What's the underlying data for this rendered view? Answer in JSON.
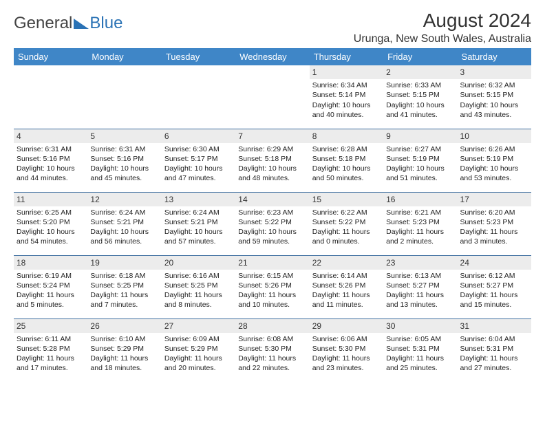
{
  "logo": {
    "part1": "General",
    "part2": "Blue"
  },
  "header": {
    "month_title": "August 2024",
    "location": "Urunga, New South Wales, Australia"
  },
  "colors": {
    "header_bg": "#3f86c7",
    "header_text": "#ffffff",
    "daynum_bg": "#ececec",
    "row_divider": "#3f6fa0",
    "logo_blue": "#2a72b5"
  },
  "day_names": [
    "Sunday",
    "Monday",
    "Tuesday",
    "Wednesday",
    "Thursday",
    "Friday",
    "Saturday"
  ],
  "weeks": [
    [
      null,
      null,
      null,
      null,
      {
        "n": "1",
        "sr": "Sunrise: 6:34 AM",
        "ss": "Sunset: 5:14 PM",
        "dl1": "Daylight: 10 hours",
        "dl2": "and 40 minutes."
      },
      {
        "n": "2",
        "sr": "Sunrise: 6:33 AM",
        "ss": "Sunset: 5:15 PM",
        "dl1": "Daylight: 10 hours",
        "dl2": "and 41 minutes."
      },
      {
        "n": "3",
        "sr": "Sunrise: 6:32 AM",
        "ss": "Sunset: 5:15 PM",
        "dl1": "Daylight: 10 hours",
        "dl2": "and 43 minutes."
      }
    ],
    [
      {
        "n": "4",
        "sr": "Sunrise: 6:31 AM",
        "ss": "Sunset: 5:16 PM",
        "dl1": "Daylight: 10 hours",
        "dl2": "and 44 minutes."
      },
      {
        "n": "5",
        "sr": "Sunrise: 6:31 AM",
        "ss": "Sunset: 5:16 PM",
        "dl1": "Daylight: 10 hours",
        "dl2": "and 45 minutes."
      },
      {
        "n": "6",
        "sr": "Sunrise: 6:30 AM",
        "ss": "Sunset: 5:17 PM",
        "dl1": "Daylight: 10 hours",
        "dl2": "and 47 minutes."
      },
      {
        "n": "7",
        "sr": "Sunrise: 6:29 AM",
        "ss": "Sunset: 5:18 PM",
        "dl1": "Daylight: 10 hours",
        "dl2": "and 48 minutes."
      },
      {
        "n": "8",
        "sr": "Sunrise: 6:28 AM",
        "ss": "Sunset: 5:18 PM",
        "dl1": "Daylight: 10 hours",
        "dl2": "and 50 minutes."
      },
      {
        "n": "9",
        "sr": "Sunrise: 6:27 AM",
        "ss": "Sunset: 5:19 PM",
        "dl1": "Daylight: 10 hours",
        "dl2": "and 51 minutes."
      },
      {
        "n": "10",
        "sr": "Sunrise: 6:26 AM",
        "ss": "Sunset: 5:19 PM",
        "dl1": "Daylight: 10 hours",
        "dl2": "and 53 minutes."
      }
    ],
    [
      {
        "n": "11",
        "sr": "Sunrise: 6:25 AM",
        "ss": "Sunset: 5:20 PM",
        "dl1": "Daylight: 10 hours",
        "dl2": "and 54 minutes."
      },
      {
        "n": "12",
        "sr": "Sunrise: 6:24 AM",
        "ss": "Sunset: 5:21 PM",
        "dl1": "Daylight: 10 hours",
        "dl2": "and 56 minutes."
      },
      {
        "n": "13",
        "sr": "Sunrise: 6:24 AM",
        "ss": "Sunset: 5:21 PM",
        "dl1": "Daylight: 10 hours",
        "dl2": "and 57 minutes."
      },
      {
        "n": "14",
        "sr": "Sunrise: 6:23 AM",
        "ss": "Sunset: 5:22 PM",
        "dl1": "Daylight: 10 hours",
        "dl2": "and 59 minutes."
      },
      {
        "n": "15",
        "sr": "Sunrise: 6:22 AM",
        "ss": "Sunset: 5:22 PM",
        "dl1": "Daylight: 11 hours",
        "dl2": "and 0 minutes."
      },
      {
        "n": "16",
        "sr": "Sunrise: 6:21 AM",
        "ss": "Sunset: 5:23 PM",
        "dl1": "Daylight: 11 hours",
        "dl2": "and 2 minutes."
      },
      {
        "n": "17",
        "sr": "Sunrise: 6:20 AM",
        "ss": "Sunset: 5:23 PM",
        "dl1": "Daylight: 11 hours",
        "dl2": "and 3 minutes."
      }
    ],
    [
      {
        "n": "18",
        "sr": "Sunrise: 6:19 AM",
        "ss": "Sunset: 5:24 PM",
        "dl1": "Daylight: 11 hours",
        "dl2": "and 5 minutes."
      },
      {
        "n": "19",
        "sr": "Sunrise: 6:18 AM",
        "ss": "Sunset: 5:25 PM",
        "dl1": "Daylight: 11 hours",
        "dl2": "and 7 minutes."
      },
      {
        "n": "20",
        "sr": "Sunrise: 6:16 AM",
        "ss": "Sunset: 5:25 PM",
        "dl1": "Daylight: 11 hours",
        "dl2": "and 8 minutes."
      },
      {
        "n": "21",
        "sr": "Sunrise: 6:15 AM",
        "ss": "Sunset: 5:26 PM",
        "dl1": "Daylight: 11 hours",
        "dl2": "and 10 minutes."
      },
      {
        "n": "22",
        "sr": "Sunrise: 6:14 AM",
        "ss": "Sunset: 5:26 PM",
        "dl1": "Daylight: 11 hours",
        "dl2": "and 11 minutes."
      },
      {
        "n": "23",
        "sr": "Sunrise: 6:13 AM",
        "ss": "Sunset: 5:27 PM",
        "dl1": "Daylight: 11 hours",
        "dl2": "and 13 minutes."
      },
      {
        "n": "24",
        "sr": "Sunrise: 6:12 AM",
        "ss": "Sunset: 5:27 PM",
        "dl1": "Daylight: 11 hours",
        "dl2": "and 15 minutes."
      }
    ],
    [
      {
        "n": "25",
        "sr": "Sunrise: 6:11 AM",
        "ss": "Sunset: 5:28 PM",
        "dl1": "Daylight: 11 hours",
        "dl2": "and 17 minutes."
      },
      {
        "n": "26",
        "sr": "Sunrise: 6:10 AM",
        "ss": "Sunset: 5:29 PM",
        "dl1": "Daylight: 11 hours",
        "dl2": "and 18 minutes."
      },
      {
        "n": "27",
        "sr": "Sunrise: 6:09 AM",
        "ss": "Sunset: 5:29 PM",
        "dl1": "Daylight: 11 hours",
        "dl2": "and 20 minutes."
      },
      {
        "n": "28",
        "sr": "Sunrise: 6:08 AM",
        "ss": "Sunset: 5:30 PM",
        "dl1": "Daylight: 11 hours",
        "dl2": "and 22 minutes."
      },
      {
        "n": "29",
        "sr": "Sunrise: 6:06 AM",
        "ss": "Sunset: 5:30 PM",
        "dl1": "Daylight: 11 hours",
        "dl2": "and 23 minutes."
      },
      {
        "n": "30",
        "sr": "Sunrise: 6:05 AM",
        "ss": "Sunset: 5:31 PM",
        "dl1": "Daylight: 11 hours",
        "dl2": "and 25 minutes."
      },
      {
        "n": "31",
        "sr": "Sunrise: 6:04 AM",
        "ss": "Sunset: 5:31 PM",
        "dl1": "Daylight: 11 hours",
        "dl2": "and 27 minutes."
      }
    ]
  ]
}
